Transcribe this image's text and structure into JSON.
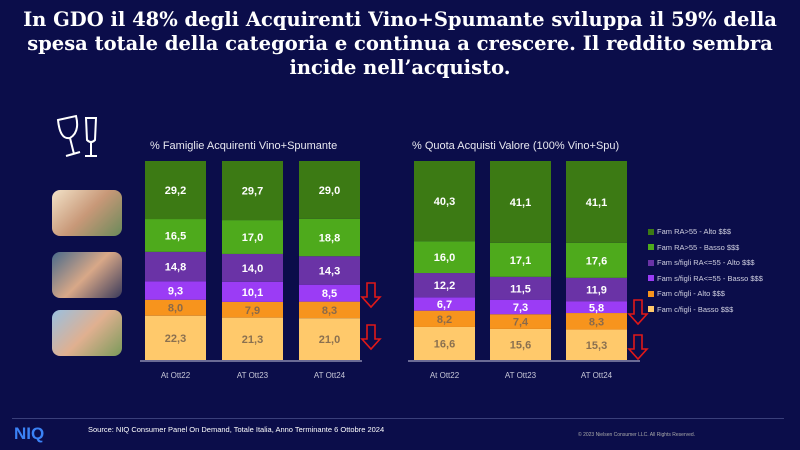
{
  "title": "In GDO il 48% degli Acquirenti Vino+Spumante sviluppa il 59% della spesa totale della categoria e continua a crescere. Il reddito sembra incide nell’acquisto.",
  "footer": {
    "logo": "NIQ",
    "source": "Source: NIQ Consumer Panel On Demand, Totale Italia, Anno Terminante 6 Ottobre 2024",
    "copyright": "© 2023 Nielsen Consumer LLC. All Rights Reserved."
  },
  "colors": {
    "Fam c/figli - Basso $$$": "#ffc96b",
    "Fam c/figli - Alto $$$": "#f7941d",
    "Fam s/figli RA<=55 - Basso $$$": "#9b3cf5",
    "Fam s/figli RA<=55 - Alto $$$": "#6a33a6",
    "Fam RA>55 - Basso $$$": "#4eaa1c",
    "Fam RA>55 - Alto $$$": "#3c7a14"
  },
  "legend": [
    "Fam RA>55 - Alto $$$",
    "Fam RA>55 - Basso $$$",
    "Fam s/figli RA<=55 - Alto $$$",
    "Fam s/figli RA<=55 - Basso $$$",
    "Fam c/figli - Alto $$$",
    "Fam c/figli - Basso $$$"
  ],
  "chart_data": [
    {
      "type": "bar",
      "stacked": true,
      "title": "% Famiglie Acquirenti Vino+Spumante",
      "categories": [
        "At Ott22",
        "AT Ott23",
        "AT Ott24"
      ],
      "ylim": [
        0,
        100
      ],
      "series": [
        {
          "name": "Fam c/figli - Basso $$$",
          "values": [
            "22,3",
            "21,3",
            "21,0"
          ]
        },
        {
          "name": "Fam c/figli - Alto $$$",
          "values": [
            "8,0",
            "7,9",
            "8,3"
          ]
        },
        {
          "name": "Fam s/figli RA<=55 - Basso $$$",
          "values": [
            "9,3",
            "10,1",
            "8,5"
          ]
        },
        {
          "name": "Fam s/figli RA<=55 - Alto $$$",
          "values": [
            "14,8",
            "14,0",
            "14,3"
          ]
        },
        {
          "name": "Fam RA>55 - Basso $$$",
          "values": [
            "16,5",
            "17,0",
            "18,8"
          ]
        },
        {
          "name": "Fam RA>55 - Alto $$$",
          "values": [
            "29,2",
            "29,7",
            "29,0"
          ]
        }
      ]
    },
    {
      "type": "bar",
      "stacked": true,
      "title": "% Quota Acquisti Valore (100% Vino+Spu)",
      "categories": [
        "At Ott22",
        "AT Ott23",
        "AT Ott24"
      ],
      "ylim": [
        0,
        100
      ],
      "series": [
        {
          "name": "Fam c/figli - Basso $$$",
          "values": [
            "16,6",
            "15,6",
            "15,3"
          ]
        },
        {
          "name": "Fam c/figli - Alto $$$",
          "values": [
            "8,2",
            "7,4",
            "8,3"
          ]
        },
        {
          "name": "Fam s/figli RA<=55 - Basso $$$",
          "values": [
            "6,7",
            "7,3",
            "5,8"
          ]
        },
        {
          "name": "Fam s/figli RA<=55 - Alto $$$",
          "values": [
            "12,2",
            "11,5",
            "11,9"
          ]
        },
        {
          "name": "Fam RA>55 - Basso $$$",
          "values": [
            "16,0",
            "17,1",
            "17,6"
          ]
        },
        {
          "name": "Fam RA>55 - Alto $$$",
          "values": [
            "40,3",
            "41,1",
            "41,1"
          ]
        }
      ]
    }
  ]
}
